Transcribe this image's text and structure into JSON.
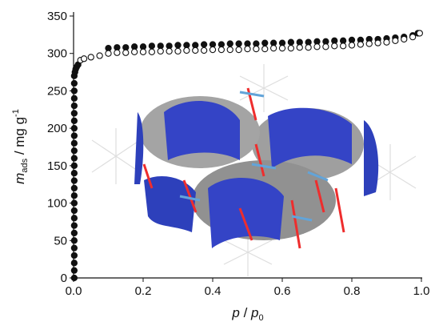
{
  "chart_data": {
    "type": "scatter",
    "xlabel": {
      "p1": "p",
      "sep": " / ",
      "p2": "p",
      "sub": "0"
    },
    "ylabel": {
      "m": "m",
      "sub": "ads",
      "unit": " / mg g",
      "sup": "-1"
    },
    "xlim": [
      0,
      1
    ],
    "ylim": [
      0,
      350
    ],
    "xticks": [
      {
        "value": 0,
        "label": "0.0"
      },
      0.2,
      0.4,
      0.6,
      0.8,
      {
        "value": 1,
        "label": "1.0"
      }
    ],
    "yticks": [
      0,
      50,
      100,
      150,
      200,
      250,
      300,
      350
    ],
    "series": [
      {
        "color": "#111111",
        "filled": true,
        "x": [
          0.002,
          0.002,
          0.002,
          0.002,
          0.002,
          0.002,
          0.002,
          0.002,
          0.002,
          0.002,
          0.002,
          0.002,
          0.002,
          0.002,
          0.002,
          0.002,
          0.002,
          0.002,
          0.002,
          0.002,
          0.002,
          0.002,
          0.002,
          0.002,
          0.002,
          0.002,
          0.002,
          0.002,
          0.004,
          0.006,
          0.009,
          0.013,
          0.1,
          0.125,
          0.15,
          0.175,
          0.2,
          0.225,
          0.25,
          0.275,
          0.3,
          0.325,
          0.35,
          0.375,
          0.4,
          0.425,
          0.45,
          0.475,
          0.5,
          0.525,
          0.55,
          0.575,
          0.6,
          0.625,
          0.65,
          0.675,
          0.7,
          0.725,
          0.75,
          0.775,
          0.8,
          0.825,
          0.85,
          0.875,
          0.9,
          0.925,
          0.95,
          0.975,
          0.99
        ],
        "values": [
          0,
          10,
          20,
          30,
          40,
          50,
          60,
          70,
          80,
          90,
          100,
          110,
          120,
          130,
          140,
          150,
          160,
          170,
          180,
          190,
          200,
          210,
          220,
          230,
          240,
          250,
          260,
          270,
          275,
          279,
          282,
          285,
          307,
          308,
          308,
          309,
          309,
          310,
          310,
          310,
          311,
          311,
          311,
          312,
          312,
          312,
          313,
          313,
          313,
          313,
          314,
          314,
          314,
          315,
          315,
          315,
          316,
          316,
          317,
          317,
          318,
          318,
          319,
          319,
          320,
          321,
          322,
          324,
          327
        ]
      },
      {
        "color": "#111111",
        "filled": false,
        "x": [
          0.02,
          0.03,
          0.05,
          0.075,
          0.1,
          0.125,
          0.15,
          0.175,
          0.2,
          0.225,
          0.25,
          0.275,
          0.3,
          0.325,
          0.35,
          0.375,
          0.4,
          0.425,
          0.45,
          0.475,
          0.5,
          0.525,
          0.55,
          0.575,
          0.6,
          0.625,
          0.65,
          0.675,
          0.7,
          0.725,
          0.75,
          0.775,
          0.8,
          0.825,
          0.85,
          0.875,
          0.9,
          0.925,
          0.95,
          0.975,
          0.995
        ],
        "values": [
          291,
          293,
          295,
          297,
          300,
          301,
          301,
          302,
          302,
          302,
          303,
          303,
          303,
          304,
          304,
          304,
          305,
          305,
          305,
          305,
          306,
          306,
          306,
          307,
          307,
          307,
          308,
          308,
          309,
          309,
          310,
          310,
          311,
          312,
          313,
          314,
          315,
          317,
          319,
          322,
          327
        ]
      }
    ]
  }
}
